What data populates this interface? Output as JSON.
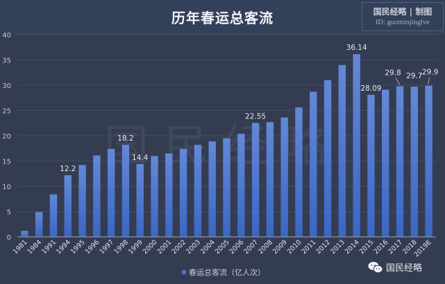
{
  "header": {
    "title": "历年春运总客流",
    "badge_line1": "国民经略 | 制图",
    "badge_line2": "ID: guominjinglve"
  },
  "watermark": "国民经略",
  "legend": {
    "label": "春运总客流（亿人次）",
    "color": "#4a72c6"
  },
  "footer": {
    "brand": "国民经略",
    "icon": "wechat-icon"
  },
  "colors": {
    "background": "#343c52",
    "bar_top": "#6388d6",
    "bar_bottom": "#3b66c4",
    "grid": "#454d64",
    "axis": "#8c93a5"
  },
  "chart_data": {
    "type": "bar",
    "title": "历年春运总客流",
    "xlabel": "",
    "ylabel": "",
    "ylim": [
      0,
      40
    ],
    "yticks": [
      0,
      5,
      10,
      15,
      20,
      25,
      30,
      35,
      40
    ],
    "grid": true,
    "legend_position": "bottom",
    "categories": [
      "1981",
      "1984",
      "1991",
      "1994",
      "1995",
      "1996",
      "1997",
      "1998",
      "1999",
      "2000",
      "2001",
      "2002",
      "2003",
      "2004",
      "2005",
      "2006",
      "2007",
      "2008",
      "2009",
      "2010",
      "2011",
      "2012",
      "2013",
      "2014",
      "2015",
      "2016",
      "2017",
      "2018",
      "2019E"
    ],
    "series": [
      {
        "name": "春运总客流（亿人次）",
        "values": [
          1.2,
          4.9,
          8.4,
          12.2,
          14.2,
          16.1,
          17.4,
          18.2,
          14.4,
          16.0,
          16.5,
          17.4,
          18.2,
          18.9,
          19.5,
          20.4,
          22.55,
          22.7,
          23.6,
          25.6,
          28.7,
          31.0,
          34.0,
          36.14,
          28.09,
          29.1,
          29.8,
          29.7,
          29.9
        ]
      }
    ],
    "data_labels": [
      {
        "category": "1994",
        "label": "12.2"
      },
      {
        "category": "1998",
        "label": "18.2"
      },
      {
        "category": "1999",
        "label": "14.4"
      },
      {
        "category": "2007",
        "label": "22.55"
      },
      {
        "category": "2014",
        "label": "36.14"
      },
      {
        "category": "2015",
        "label": "28.09"
      },
      {
        "category": "2017",
        "label": "29.8"
      },
      {
        "category": "2018",
        "label": "29.7"
      },
      {
        "category": "2019E",
        "label": "29.9"
      }
    ]
  }
}
